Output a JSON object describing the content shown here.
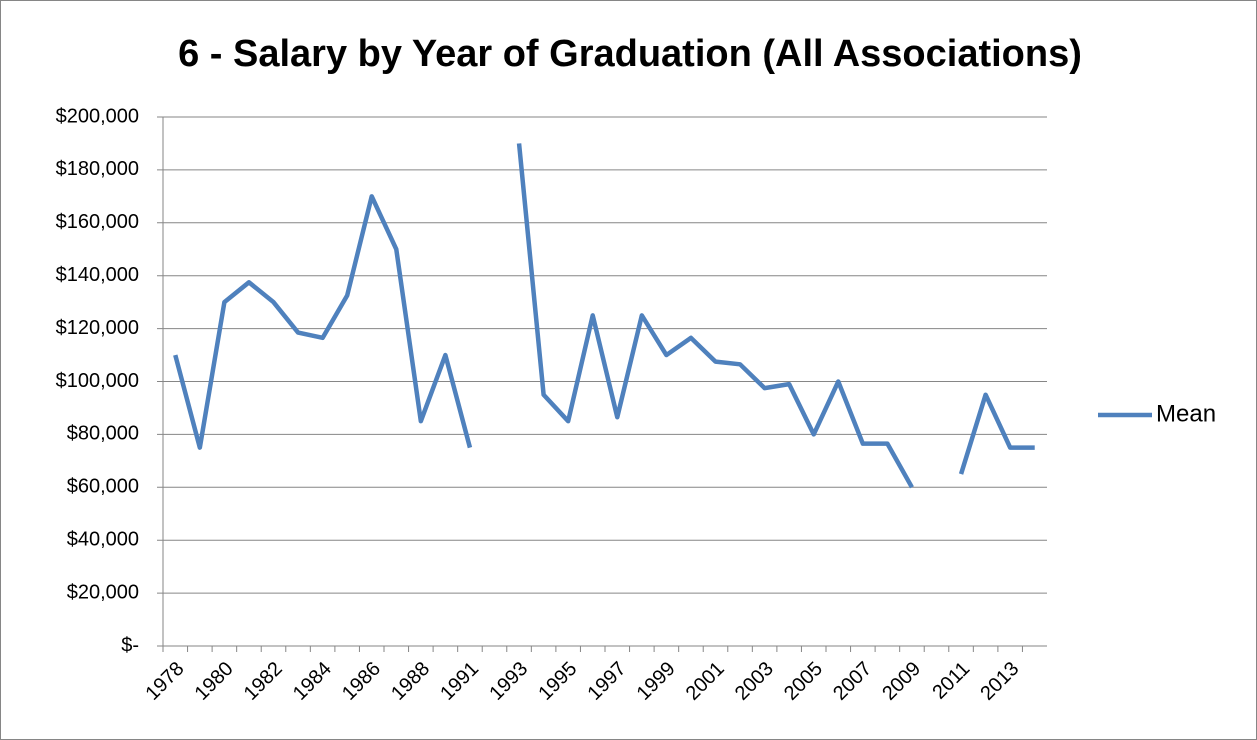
{
  "chart_data": {
    "type": "line",
    "title": "6 - Salary by Year of Graduation (All Associations)",
    "categories": [
      "1978",
      null,
      "1980",
      null,
      "1982",
      null,
      "1984",
      null,
      "1986",
      null,
      "1988",
      null,
      "1991",
      null,
      "1993",
      null,
      "1995",
      null,
      "1997",
      null,
      "1999",
      null,
      "2001",
      null,
      "2003",
      null,
      "2005",
      null,
      "2007",
      null,
      "2009",
      null,
      "2011",
      null,
      "2013",
      null
    ],
    "series": [
      {
        "name": "Mean",
        "color": "#4f81bd",
        "values": [
          110000,
          75000,
          130000,
          137500,
          130000,
          118500,
          116500,
          132500,
          170000,
          150000,
          85000,
          110000,
          75000,
          null,
          190000,
          95000,
          85000,
          125000,
          86500,
          125000,
          110000,
          116500,
          107500,
          106500,
          97500,
          99000,
          80000,
          100000,
          76500,
          76500,
          60000,
          null,
          65000,
          95000,
          75000,
          75000
        ]
      }
    ],
    "ylim": [
      0,
      200000
    ],
    "yticks": [
      {
        "value": 0,
        "label": "$-"
      },
      {
        "value": 20000,
        "label": "$20,000"
      },
      {
        "value": 40000,
        "label": "$40,000"
      },
      {
        "value": 60000,
        "label": "$60,000"
      },
      {
        "value": 80000,
        "label": "$80,000"
      },
      {
        "value": 100000,
        "label": "$100,000"
      },
      {
        "value": 120000,
        "label": "$120,000"
      },
      {
        "value": 140000,
        "label": "$140,000"
      },
      {
        "value": 160000,
        "label": "$160,000"
      },
      {
        "value": 180000,
        "label": "$180,000"
      },
      {
        "value": 200000,
        "label": "$200,000"
      }
    ],
    "grid": true,
    "legend": "right"
  }
}
